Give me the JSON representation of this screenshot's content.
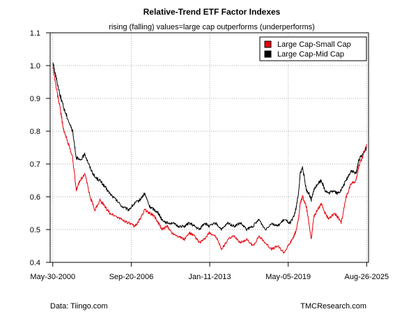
{
  "chart_data": {
    "type": "line",
    "title": "Relative-Trend ETF Factor Indexes",
    "subtitle": "rising (falling) values=large cap outperforms (underperforms)",
    "xlabel": "",
    "ylabel": "",
    "ylim": [
      0.4,
      1.1
    ],
    "yticks": [
      0.4,
      0.5,
      0.6,
      0.7,
      0.8,
      0.9,
      1.0,
      1.1
    ],
    "ytick_labels": [
      "0.4",
      "0.5",
      "0.6",
      "0.7",
      "0.8",
      "0.9",
      "1.0",
      "1.1"
    ],
    "xlim": [
      2000.2,
      2025.8
    ],
    "xticks": [
      2000.41,
      2006.72,
      2013.03,
      2019.34,
      2025.65
    ],
    "xtick_labels": [
      "May-30-2000",
      "Sep-20-2006",
      "Jan-11-2013",
      "May-05-2019",
      "Aug-26-2025"
    ],
    "grid": true,
    "legend_position": "top-right",
    "footer_left": "Data: Tiingo.com",
    "footer_right": "TMCResearch.com",
    "series": [
      {
        "name": "Large Cap-Small Cap",
        "color": "#e8000b",
        "x": [
          2000.41,
          2000.7,
          2001.0,
          2001.3,
          2001.6,
          2002.0,
          2002.3,
          2002.6,
          2003.0,
          2003.4,
          2003.8,
          2004.2,
          2004.6,
          2005.0,
          2005.5,
          2006.0,
          2006.5,
          2007.0,
          2007.4,
          2007.8,
          2008.2,
          2008.6,
          2008.9,
          2009.2,
          2009.6,
          2010.0,
          2010.5,
          2011.0,
          2011.4,
          2011.8,
          2012.2,
          2012.6,
          2013.0,
          2013.5,
          2014.0,
          2014.5,
          2015.0,
          2015.5,
          2016.0,
          2016.5,
          2017.0,
          2017.5,
          2018.0,
          2018.5,
          2019.0,
          2019.5,
          2019.8,
          2020.0,
          2020.2,
          2020.3,
          2020.5,
          2020.8,
          2021.0,
          2021.2,
          2021.4,
          2021.7,
          2022.0,
          2022.3,
          2022.6,
          2023.0,
          2023.3,
          2023.6,
          2024.0,
          2024.4,
          2024.8,
          2025.0,
          2025.3,
          2025.65
        ],
        "values": [
          1.0,
          0.93,
          0.87,
          0.8,
          0.77,
          0.72,
          0.62,
          0.65,
          0.67,
          0.6,
          0.56,
          0.59,
          0.57,
          0.55,
          0.54,
          0.53,
          0.52,
          0.51,
          0.53,
          0.56,
          0.55,
          0.54,
          0.52,
          0.5,
          0.51,
          0.49,
          0.48,
          0.47,
          0.49,
          0.48,
          0.46,
          0.47,
          0.49,
          0.48,
          0.44,
          0.47,
          0.48,
          0.46,
          0.47,
          0.45,
          0.48,
          0.46,
          0.44,
          0.45,
          0.43,
          0.46,
          0.48,
          0.5,
          0.54,
          0.58,
          0.6,
          0.57,
          0.52,
          0.47,
          0.54,
          0.56,
          0.58,
          0.55,
          0.53,
          0.55,
          0.54,
          0.52,
          0.6,
          0.64,
          0.65,
          0.69,
          0.72,
          0.76
        ]
      },
      {
        "name": "Large Cap-Mid Cap",
        "color": "#000000",
        "x": [
          2000.41,
          2000.7,
          2001.0,
          2001.3,
          2001.6,
          2002.0,
          2002.3,
          2002.6,
          2003.0,
          2003.4,
          2003.8,
          2004.2,
          2004.6,
          2005.0,
          2005.5,
          2006.0,
          2006.5,
          2007.0,
          2007.4,
          2007.8,
          2008.2,
          2008.6,
          2008.9,
          2009.2,
          2009.6,
          2010.0,
          2010.5,
          2011.0,
          2011.4,
          2011.8,
          2012.2,
          2012.6,
          2013.0,
          2013.5,
          2014.0,
          2014.5,
          2015.0,
          2015.5,
          2016.0,
          2016.5,
          2017.0,
          2017.5,
          2018.0,
          2018.5,
          2019.0,
          2019.5,
          2019.8,
          2020.0,
          2020.2,
          2020.3,
          2020.5,
          2020.8,
          2021.0,
          2021.2,
          2021.4,
          2021.7,
          2022.0,
          2022.3,
          2022.6,
          2023.0,
          2023.3,
          2023.6,
          2024.0,
          2024.4,
          2024.8,
          2025.0,
          2025.3,
          2025.65
        ],
        "values": [
          1.01,
          0.96,
          0.91,
          0.87,
          0.84,
          0.8,
          0.72,
          0.71,
          0.73,
          0.69,
          0.66,
          0.65,
          0.63,
          0.61,
          0.59,
          0.57,
          0.56,
          0.58,
          0.59,
          0.61,
          0.57,
          0.56,
          0.55,
          0.53,
          0.52,
          0.52,
          0.51,
          0.51,
          0.52,
          0.51,
          0.5,
          0.52,
          0.51,
          0.52,
          0.5,
          0.52,
          0.51,
          0.52,
          0.5,
          0.51,
          0.53,
          0.5,
          0.52,
          0.51,
          0.53,
          0.52,
          0.54,
          0.57,
          0.62,
          0.67,
          0.69,
          0.62,
          0.61,
          0.59,
          0.62,
          0.64,
          0.65,
          0.62,
          0.61,
          0.62,
          0.61,
          0.62,
          0.65,
          0.68,
          0.67,
          0.71,
          0.73,
          0.75
        ]
      }
    ]
  }
}
